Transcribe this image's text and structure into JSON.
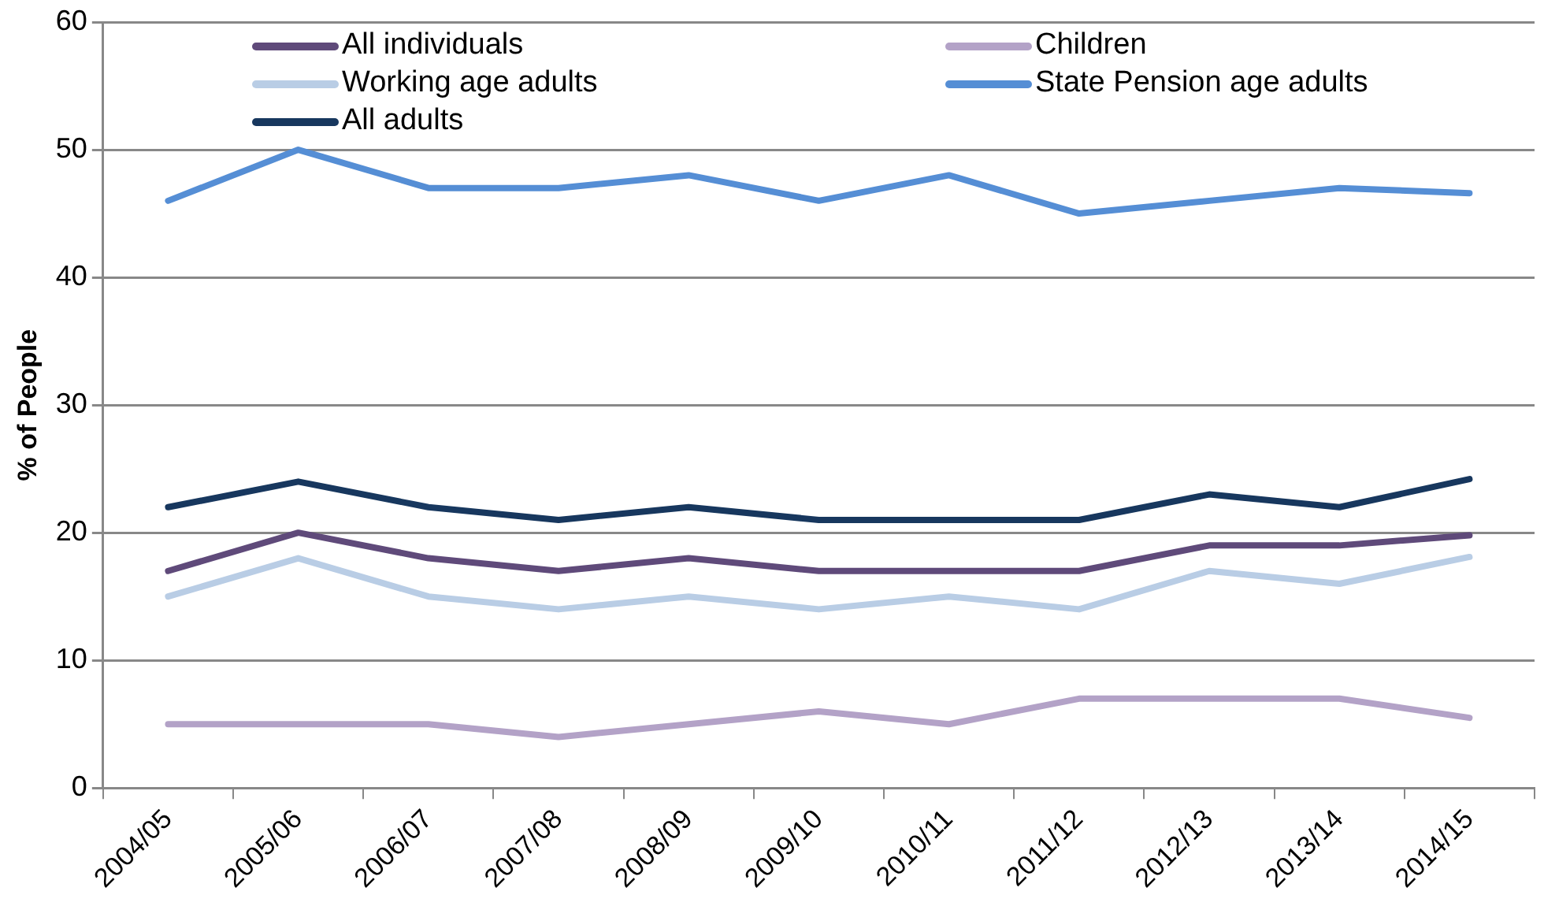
{
  "chart_data": {
    "type": "line",
    "ylabel": "% of People",
    "categories": [
      "2004/05",
      "2005/06",
      "2006/07",
      "2007/08",
      "2008/09",
      "2009/10",
      "2010/11",
      "2011/12",
      "2012/13",
      "2013/14",
      "2014/15"
    ],
    "series": [
      {
        "name": "All individuals",
        "color": "#5f4a7a",
        "values": [
          17,
          20,
          18,
          17,
          18,
          17,
          17,
          17,
          19,
          19,
          19.8
        ]
      },
      {
        "name": "Children",
        "color": "#b3a2c7",
        "values": [
          5,
          5,
          5,
          4,
          5,
          6,
          5,
          7,
          7,
          7,
          5.5
        ]
      },
      {
        "name": "Working age adults",
        "color": "#b9cde5",
        "values": [
          15,
          18,
          15,
          14,
          15,
          14,
          15,
          14,
          17,
          16,
          18.1
        ]
      },
      {
        "name": "State Pension age adults",
        "color": "#558ed5",
        "values": [
          46,
          50,
          47,
          47,
          48,
          46,
          48,
          45,
          46,
          47,
          46.6
        ]
      },
      {
        "name": "All adults",
        "color": "#17375e",
        "values": [
          22,
          24,
          22,
          21,
          22,
          21,
          21,
          21,
          23,
          22,
          24.2
        ]
      }
    ],
    "ylim": [
      0,
      60
    ],
    "yticks": [
      0,
      10,
      20,
      30,
      40,
      50,
      60
    ],
    "grid": "y",
    "legend": "top",
    "marker": "none",
    "line_style": "solid"
  }
}
